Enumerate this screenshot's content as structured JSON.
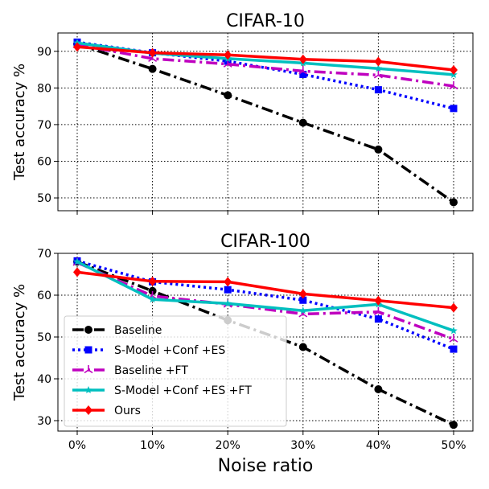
{
  "chart_data": [
    {
      "type": "line",
      "title": "CIFAR-10",
      "xlabel": "",
      "ylabel": "Test accuracy %",
      "categories": [
        "0%",
        "10%",
        "20%",
        "30%",
        "40%",
        "50%"
      ],
      "ylim": [
        46.5,
        95
      ],
      "yticks": [
        50,
        60,
        70,
        80,
        90
      ],
      "grid": true,
      "series": [
        {
          "name": "Baseline",
          "color": "#000000",
          "marker": "circle",
          "dash": "dashdot",
          "values": [
            92.0,
            85.2,
            78.0,
            70.5,
            63.2,
            48.8
          ]
        },
        {
          "name": "S-Model +Conf +ES",
          "color": "#0000ff",
          "marker": "square",
          "dash": "dotted",
          "values": [
            92.5,
            89.6,
            87.3,
            83.7,
            79.5,
            74.4
          ]
        },
        {
          "name": "Baseline +FT",
          "color": "#bf00bf",
          "marker": "tri",
          "dash": "dashdot",
          "values": [
            91.8,
            88.0,
            86.5,
            84.6,
            83.5,
            80.5
          ]
        },
        {
          "name": "S-Model +Conf +ES +FT",
          "color": "#00bfbf",
          "marker": "star",
          "dash": "solid",
          "values": [
            92.3,
            89.5,
            88.0,
            86.8,
            85.3,
            83.6
          ]
        },
        {
          "name": "Ours",
          "color": "#ff0000",
          "marker": "diamond",
          "dash": "solid",
          "values": [
            91.2,
            89.6,
            89.0,
            87.8,
            87.2,
            84.9
          ]
        }
      ]
    },
    {
      "type": "line",
      "title": "CIFAR-100",
      "xlabel": "Noise ratio",
      "ylabel": "Test accuracy %",
      "categories": [
        "0%",
        "10%",
        "20%",
        "30%",
        "40%",
        "50%"
      ],
      "ylim": [
        27.5,
        70
      ],
      "yticks": [
        30,
        40,
        50,
        60,
        70
      ],
      "grid": true,
      "legend_loc": "lower-left",
      "series": [
        {
          "name": "Baseline",
          "color": "#000000",
          "marker": "circle",
          "dash": "dashdot",
          "values": [
            68.0,
            61.0,
            54.0,
            47.6,
            37.5,
            29.0
          ]
        },
        {
          "name": "S-Model +Conf +ES",
          "color": "#0000ff",
          "marker": "square",
          "dash": "dotted",
          "values": [
            68.2,
            63.2,
            61.3,
            58.8,
            54.3,
            47.1
          ]
        },
        {
          "name": "Baseline +FT",
          "color": "#bf00bf",
          "marker": "tri",
          "dash": "dashdot",
          "values": [
            67.8,
            59.8,
            57.8,
            55.5,
            56.0,
            49.5
          ]
        },
        {
          "name": "S-Model +Conf +ES +FT",
          "color": "#00bfbf",
          "marker": "star",
          "dash": "solid",
          "values": [
            68.0,
            59.0,
            58.0,
            56.3,
            57.8,
            51.5
          ]
        },
        {
          "name": "Ours",
          "color": "#ff0000",
          "marker": "diamond",
          "dash": "solid",
          "values": [
            65.5,
            63.3,
            63.2,
            60.3,
            58.7,
            57.0
          ]
        }
      ]
    }
  ]
}
